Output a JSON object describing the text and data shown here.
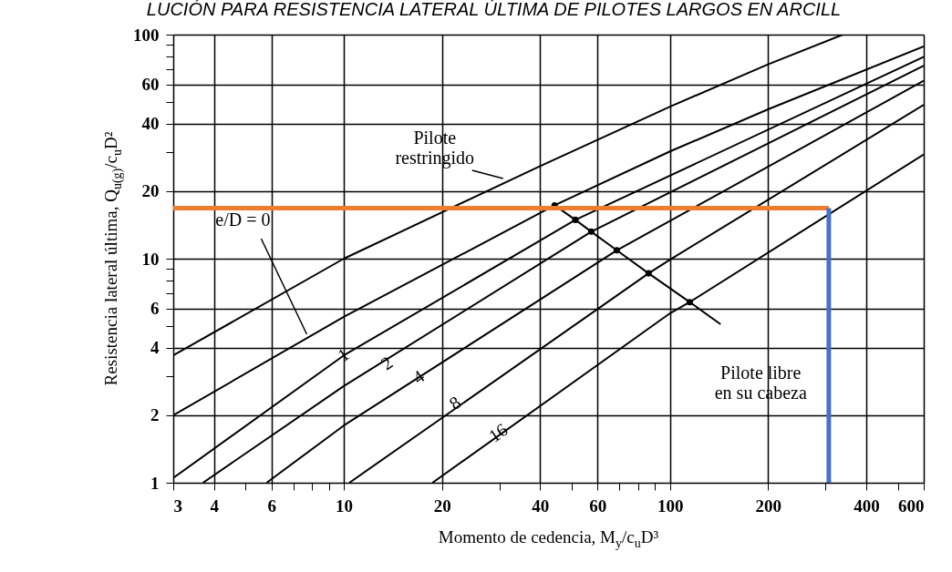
{
  "chart_data": {
    "type": "line",
    "title": "LUCIÓN PARA RESISTENCIA LATERAL ÚLTIMA DE PILOTES LARGOS EN ARCILL",
    "xlabel": "Momento de cedencia, M$_{y}$/c$_{u}$D³",
    "ylabel": "Resistencia lateral última, Q$_{u(g)}$/c$_{u}$D²",
    "log": "xy",
    "grid": true,
    "xlim": [
      3,
      600
    ],
    "ylim": [
      1,
      100
    ],
    "xticks": [
      3,
      4,
      {
        "value": 5,
        "label": null
      },
      6,
      {
        "value": 7,
        "label": null
      },
      {
        "value": 8,
        "label": null
      },
      {
        "value": 9,
        "label": null
      },
      10,
      20,
      {
        "value": 30,
        "label": null
      },
      40,
      {
        "value": 50,
        "label": null
      },
      60,
      {
        "value": 70,
        "label": null
      },
      {
        "value": 80,
        "label": null
      },
      {
        "value": 90,
        "label": null
      },
      100,
      200,
      {
        "value": 300,
        "label": null
      },
      400,
      {
        "value": 500,
        "label": null
      },
      600
    ],
    "yticks": [
      1,
      2,
      {
        "value": 3,
        "label": null
      },
      4,
      {
        "value": 5,
        "label": null
      },
      6,
      {
        "value": 7,
        "label": null
      },
      {
        "value": 8,
        "label": null
      },
      {
        "value": 9,
        "label": null
      },
      10,
      20,
      {
        "value": 30,
        "label": null
      },
      40,
      {
        "value": 50,
        "label": null
      },
      60,
      {
        "value": 70,
        "label": null
      },
      {
        "value": 80,
        "label": null
      },
      {
        "value": 90,
        "label": null
      },
      100
    ],
    "series": [
      {
        "color": "#000000",
        "x": [
          3,
          10,
          40,
          100,
          200,
          339
        ],
        "values": [
          3.7,
          10,
          25.9,
          47.7,
          73.7,
          100
        ]
      },
      {
        "color": "#000000",
        "x": [
          3,
          10,
          44.3,
          100,
          200,
          600
        ],
        "values": [
          2,
          5.5,
          17.3,
          30.1,
          46.4,
          88.7
        ]
      },
      {
        "color": "#000000",
        "x": [
          3,
          10,
          51.3,
          600
        ],
        "values": [
          1.05,
          3.7,
          14.9,
          79.6
        ]
      },
      {
        "color": "#000000",
        "x": [
          3.7,
          10,
          57.4,
          600
        ],
        "values": [
          1,
          2.7,
          13.2,
          72.6
        ]
      },
      {
        "color": "#000000",
        "x": [
          5.8,
          10,
          68.7,
          600
        ],
        "values": [
          1,
          1.8,
          10.9,
          62.2
        ]
      },
      {
        "color": "#000000",
        "x": [
          10.4,
          86,
          100,
          600
        ],
        "values": [
          1,
          8.6,
          9.9,
          48.6
        ]
      },
      {
        "color": "#000000",
        "x": [
          18.7,
          100,
          115,
          600
        ],
        "values": [
          1,
          5.7,
          6.4,
          29.2
        ]
      },
      {
        "color": "#000000",
        "x": [
          44.3,
          51.3,
          57.4,
          68.7,
          86,
          115,
          143
        ],
        "values": [
          17.3,
          14.9,
          13.2,
          10.9,
          8.6,
          6.4,
          5.1
        ]
      },
      {
        "type": "scatter",
        "marker": "circle",
        "color": "#000000",
        "x": [
          44.3,
          51.3,
          57.4,
          68.7,
          86,
          115
        ],
        "values": [
          17.3,
          14.9,
          13.2,
          10.9,
          8.6,
          6.4
        ]
      },
      {
        "type": "line",
        "color": "#ed7d31",
        "x": [
          3,
          307
        ],
        "values": [
          16.8,
          16.8
        ]
      },
      {
        "type": "line",
        "color": "#4472c4",
        "x": [
          307,
          307
        ],
        "values": [
          16.8,
          1
        ]
      }
    ],
    "annotations": [
      {
        "text": "Pilote restringido",
        "x": 30.8,
        "y": 22.8
      },
      {
        "text": "e/D = 0",
        "x": 7.7,
        "y": 4.6
      },
      {
        "text": "1",
        "x": 10,
        "y": 3.7
      },
      {
        "text": "2",
        "x": 13.6,
        "y": 3.4
      },
      {
        "text": "4",
        "x": 17,
        "y": 2.95
      },
      {
        "text": "8",
        "x": 22,
        "y": 2.26
      },
      {
        "text": "16",
        "x": 29.8,
        "y": 1.66
      },
      {
        "text": "Pilote libre en su cabeza",
        "x": 143,
        "y": 5.1
      }
    ]
  }
}
